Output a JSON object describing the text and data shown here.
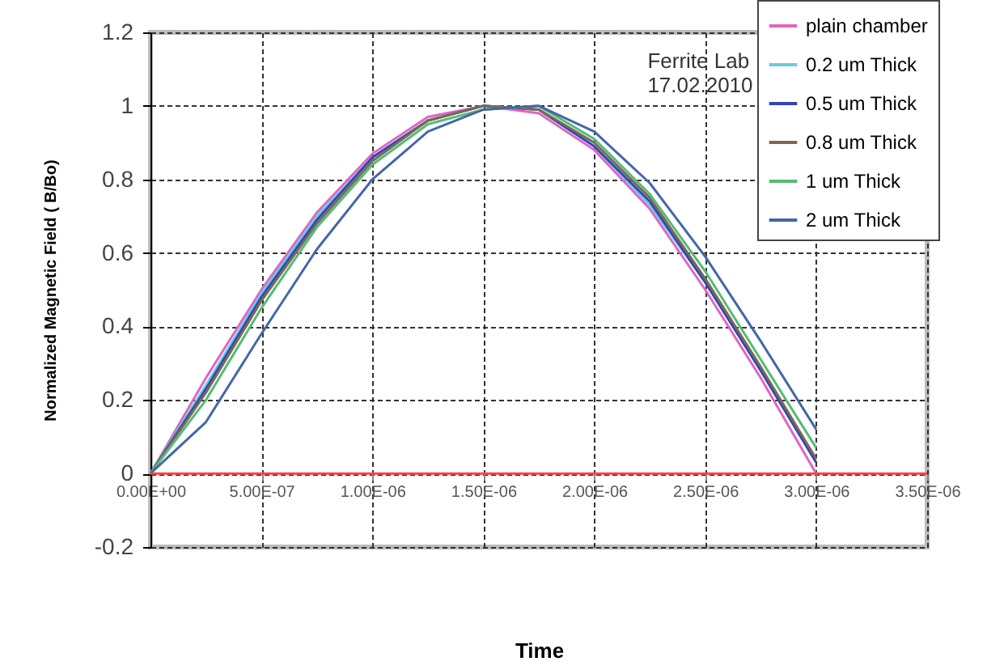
{
  "chart_data": {
    "type": "line",
    "xlabel": "Time",
    "ylabel": "Normalized Magnetic Field ( B/Bo)",
    "annotations": [
      "Ferrite Lab",
      "17.02.2010"
    ],
    "x": [
      0,
      2.5e-07,
      5e-07,
      7.5e-07,
      1e-06,
      1.25e-06,
      1.5e-06,
      1.75e-06,
      2e-06,
      2.25e-06,
      2.5e-06,
      2.75e-06,
      3e-06
    ],
    "series": [
      {
        "name": "plain chamber",
        "color": "#e066c0",
        "values": [
          0,
          0.26,
          0.5,
          0.71,
          0.87,
          0.97,
          1.0,
          0.98,
          0.88,
          0.72,
          0.5,
          0.26,
          0
        ]
      },
      {
        "name": "0.2 um Thick",
        "color": "#66cce0",
        "values": [
          0,
          0.24,
          0.49,
          0.7,
          0.86,
          0.96,
          1.0,
          0.99,
          0.89,
          0.73,
          0.52,
          0.28,
          0.03
        ]
      },
      {
        "name": "0.5 um Thick",
        "color": "#3344bb",
        "values": [
          0,
          0.23,
          0.48,
          0.69,
          0.86,
          0.96,
          1.0,
          0.99,
          0.89,
          0.74,
          0.52,
          0.28,
          0.03
        ]
      },
      {
        "name": "0.8 um Thick",
        "color": "#7a6a50",
        "values": [
          0,
          0.22,
          0.47,
          0.68,
          0.85,
          0.96,
          1.0,
          0.99,
          0.9,
          0.75,
          0.53,
          0.29,
          0.04
        ]
      },
      {
        "name": "1 um Thick",
        "color": "#55bb77",
        "values": [
          0,
          0.2,
          0.45,
          0.67,
          0.84,
          0.95,
          0.99,
          1.0,
          0.91,
          0.76,
          0.55,
          0.31,
          0.07
        ]
      },
      {
        "name": "2 um Thick",
        "color": "#4466aa",
        "values": [
          0,
          0.14,
          0.38,
          0.61,
          0.8,
          0.93,
          0.99,
          1.0,
          0.93,
          0.79,
          0.59,
          0.36,
          0.12
        ]
      },
      {
        "color": "#ff4444",
        "x": [
          0,
          3.5e-06
        ],
        "values": [
          0,
          0
        ]
      }
    ],
    "xlim": [
      0,
      3.5e-06
    ],
    "xticks": [
      {
        "value": 0,
        "label": "0.00E+00"
      },
      {
        "value": 5e-07,
        "label": "5.00E-07"
      },
      {
        "value": 1e-06,
        "label": "1.00E-06"
      },
      {
        "value": 1.5e-06,
        "label": "1.50E-06"
      },
      {
        "value": 2e-06,
        "label": "2.00E-06"
      },
      {
        "value": 2.5e-06,
        "label": "2.50E-06"
      },
      {
        "value": 3e-06,
        "label": "3.00E-06"
      },
      {
        "value": 3.5e-06,
        "label": "3.50E-06"
      }
    ],
    "ylim": [
      -0.2,
      1.2
    ],
    "yticks": [
      -0.2,
      0,
      0.2,
      0.4,
      0.6,
      0.8,
      1,
      1.2
    ],
    "grid": true,
    "legend": "top right",
    "marker": "none",
    "line_style": "solid"
  }
}
